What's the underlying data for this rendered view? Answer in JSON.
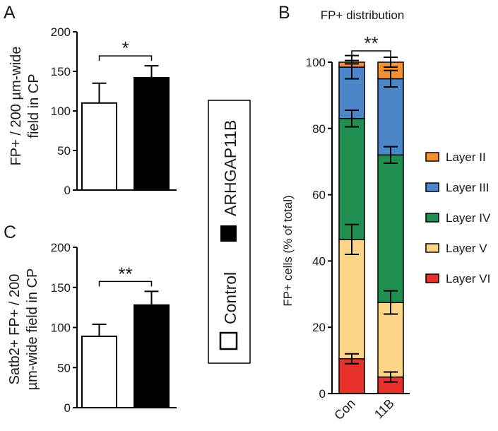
{
  "panel_labels": {
    "a": "A",
    "b": "B",
    "c": "C"
  },
  "legend": {
    "control": "Control",
    "treatment": "ARHGAP11B"
  },
  "chart_data": [
    {
      "id": "A",
      "type": "bar",
      "categories": [
        "Control",
        "ARHGAP11B"
      ],
      "values": [
        110,
        142
      ],
      "errors": [
        25,
        15
      ],
      "colors": [
        "#ffffff",
        "#000000"
      ],
      "ylabel_lines": [
        "FP+ / 200 µm-wide",
        "field in CP"
      ],
      "ylim": [
        0,
        200
      ],
      "yticks": [
        0,
        50,
        100,
        150,
        200
      ],
      "significance": "*"
    },
    {
      "id": "C",
      "type": "bar",
      "categories": [
        "Control",
        "ARHGAP11B"
      ],
      "values": [
        89,
        128
      ],
      "errors": [
        15,
        17
      ],
      "colors": [
        "#ffffff",
        "#000000"
      ],
      "ylabel_lines": [
        "Satb2+ FP+ / 200",
        "µm-wide field in CP"
      ],
      "ylim": [
        0,
        200
      ],
      "yticks": [
        0,
        50,
        100,
        150,
        200
      ],
      "significance": "**"
    },
    {
      "id": "B",
      "type": "bar",
      "stacked": true,
      "title": "FP+ distribution",
      "categories": [
        "Con",
        "11B"
      ],
      "ylabel": "FP+ cells (% of total)",
      "ylim": [
        0,
        100
      ],
      "yticks": [
        0,
        20,
        40,
        60,
        80,
        100
      ],
      "significance": "**",
      "series": [
        {
          "name": "Layer VI",
          "color": "#e8312a",
          "values": [
            10.5,
            5
          ],
          "errors": [
            1.5,
            1.5
          ]
        },
        {
          "name": "Layer V",
          "color": "#fdd587",
          "values": [
            36,
            22.5
          ],
          "errors": [
            4.5,
            3.5
          ]
        },
        {
          "name": "Layer IV",
          "color": "#1f8f4f",
          "values": [
            36.5,
            44.5
          ],
          "errors": [
            2.5,
            2.5
          ]
        },
        {
          "name": "Layer III",
          "color": "#4a86c8",
          "values": [
            15.5,
            23
          ],
          "errors": [
            3.5,
            2.5
          ]
        },
        {
          "name": "Layer II",
          "color": "#f39130",
          "values": [
            1.5,
            5
          ],
          "errors": [
            0.5,
            1.5
          ]
        }
      ],
      "legend_order": [
        "Layer II",
        "Layer III",
        "Layer IV",
        "Layer V",
        "Layer VI"
      ]
    }
  ]
}
